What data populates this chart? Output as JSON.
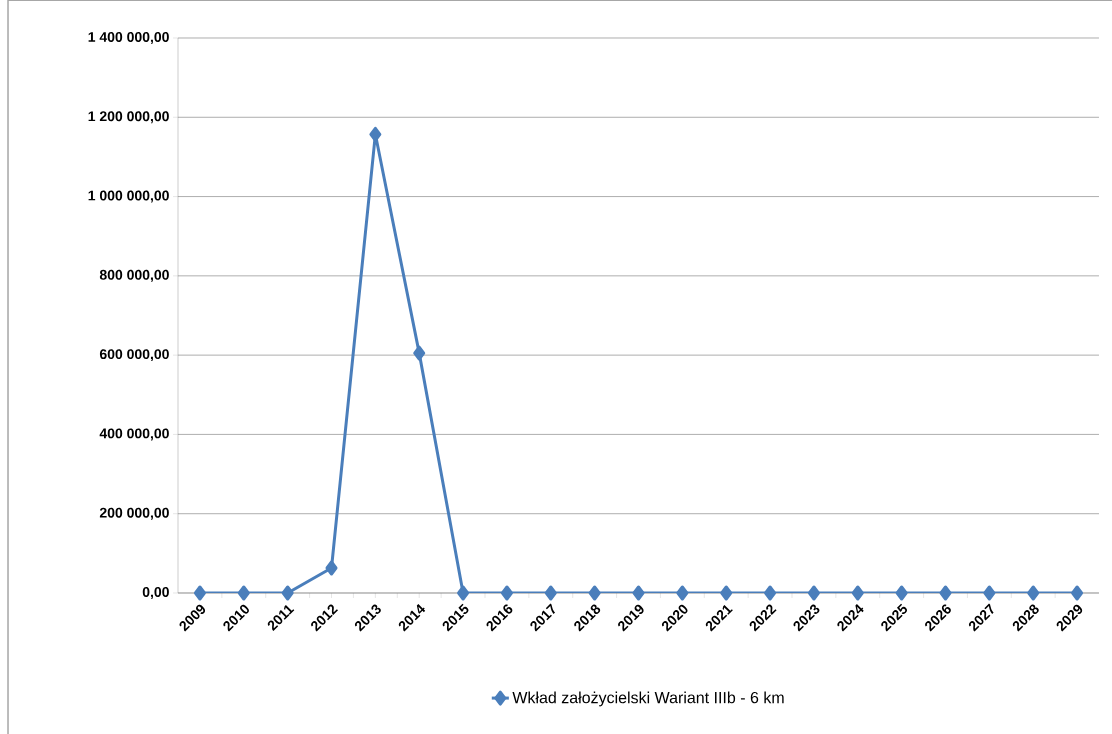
{
  "chart_data": {
    "type": "line",
    "categories": [
      "2009",
      "2010",
      "2011",
      "2012",
      "2013",
      "2014",
      "2015",
      "2016",
      "2017",
      "2018",
      "2019",
      "2020",
      "2021",
      "2022",
      "2023",
      "2024",
      "2025",
      "2026",
      "2027",
      "2028",
      "2029"
    ],
    "series": [
      {
        "name": "Wkład założycielski Wariant IIIb - 6 km",
        "color": "#4a7ebb",
        "values": [
          0,
          0,
          0,
          63000,
          1157000,
          605000,
          0,
          0,
          0,
          0,
          0,
          0,
          0,
          0,
          0,
          0,
          0,
          0,
          0,
          0,
          0
        ]
      }
    ],
    "ylim": [
      0,
      1400000
    ],
    "yticks": [
      {
        "value": 0,
        "label": "0,00"
      },
      {
        "value": 200000,
        "label": "200 000,00"
      },
      {
        "value": 400000,
        "label": "400 000,00"
      },
      {
        "value": 600000,
        "label": "600 000,00"
      },
      {
        "value": 800000,
        "label": "800 000,00"
      },
      {
        "value": 1000000,
        "label": "1 000 000,00"
      },
      {
        "value": 1200000,
        "label": "1 200 000,00"
      },
      {
        "value": 1400000,
        "label": "1 400 000,00"
      }
    ],
    "grid": "y",
    "legend": "bottom",
    "marker": "diamond",
    "line_style": "solid"
  }
}
